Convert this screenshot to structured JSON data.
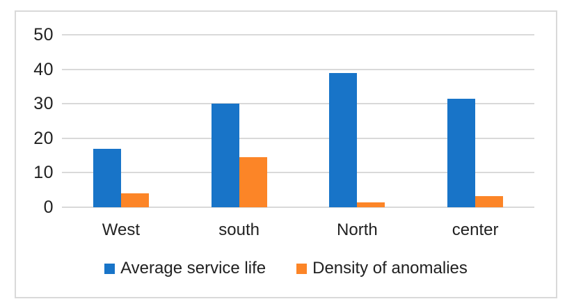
{
  "chart_data": {
    "type": "bar",
    "categories": [
      "West",
      "south",
      "North",
      "center"
    ],
    "series": [
      {
        "name": "Average service life",
        "color": "#1874C8",
        "values": [
          17,
          30,
          39,
          31.5
        ]
      },
      {
        "name": "Density of anomalies",
        "color": "#FC8527",
        "values": [
          4,
          14.5,
          1.5,
          3.2
        ]
      }
    ],
    "title": "",
    "xlabel": "",
    "ylabel": "",
    "ylim": [
      0,
      50
    ],
    "yticks": [
      0,
      10,
      20,
      30,
      40,
      50
    ],
    "grid": true,
    "legend_position": "bottom"
  },
  "colors": {
    "grid": "#D9D9D9",
    "frame_border": "#D9D9D9",
    "text": "#212121",
    "background": "#FFFFFF"
  }
}
